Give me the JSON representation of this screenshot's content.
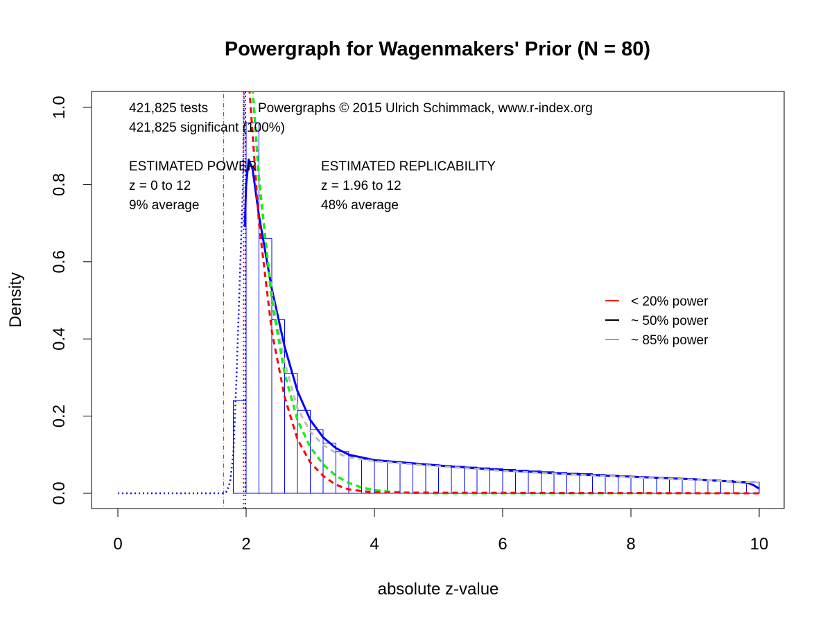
{
  "chart_data": {
    "type": "bar",
    "title": "Powergraph for Wagenmakers' Prior (N = 80)",
    "xlabel": "absolute z-value",
    "ylabel": "Density",
    "xlim": [
      0,
      10
    ],
    "ylim": [
      0,
      1.0
    ],
    "x_ticks": [
      "0",
      "2",
      "4",
      "6",
      "8",
      "10"
    ],
    "y_ticks": [
      "0.0",
      "0.2",
      "0.4",
      "0.6",
      "0.8",
      "1.0"
    ],
    "grid": false,
    "histogram": {
      "bin_width": 0.2,
      "bin_starts": [
        1.8,
        2.0,
        2.2,
        2.4,
        2.6,
        2.8,
        3.0,
        3.2,
        3.4,
        3.6,
        3.8,
        4.0,
        4.2,
        4.4,
        4.6,
        4.8,
        5.0,
        5.2,
        5.4,
        5.6,
        5.8,
        6.0,
        6.2,
        6.4,
        6.6,
        6.8,
        7.0,
        7.2,
        7.4,
        7.6,
        7.8,
        8.0,
        8.2,
        8.4,
        8.6,
        8.8,
        9.0,
        9.2,
        9.4,
        9.6,
        9.8
      ],
      "values": [
        0.24,
        0.96,
        0.66,
        0.45,
        0.31,
        0.215,
        0.165,
        0.13,
        0.108,
        0.095,
        0.088,
        0.084,
        0.081,
        0.078,
        0.076,
        0.074,
        0.072,
        0.07,
        0.068,
        0.066,
        0.064,
        0.062,
        0.06,
        0.058,
        0.056,
        0.054,
        0.052,
        0.051,
        0.049,
        0.047,
        0.045,
        0.044,
        0.042,
        0.041,
        0.039,
        0.038,
        0.036,
        0.035,
        0.033,
        0.031,
        0.029
      ],
      "color": "#0000ff"
    },
    "curves": [
      {
        "id": "density-fit",
        "color": "#0000ff",
        "style": "solid",
        "x": [
          1.98,
          2.0,
          2.04,
          2.1,
          2.2,
          2.4,
          2.6,
          2.8,
          3.0,
          3.2,
          3.4,
          3.6,
          4.0,
          5.0,
          6.0,
          7.0,
          8.0,
          9.0,
          9.8,
          9.9,
          10.0
        ],
        "y": [
          0.69,
          0.8,
          0.865,
          0.84,
          0.72,
          0.53,
          0.38,
          0.265,
          0.19,
          0.145,
          0.117,
          0.1,
          0.086,
          0.072,
          0.06,
          0.05,
          0.043,
          0.036,
          0.028,
          0.022,
          0.012
        ]
      },
      {
        "id": "density-full",
        "color": "#0000ff",
        "style": "dotted",
        "x": [
          0,
          1.65,
          1.7,
          1.75,
          1.8,
          1.85,
          1.9,
          1.95,
          1.97
        ],
        "y": [
          0,
          0,
          0.005,
          0.03,
          0.1,
          0.3,
          0.55,
          0.8,
          1.05
        ]
      },
      {
        "id": "model-fit",
        "color": "#bebebe",
        "style": "dashed",
        "x": [
          2.1,
          2.2,
          2.4,
          2.6,
          2.8,
          3.0,
          3.2,
          3.4,
          3.6,
          4.0,
          5.0,
          6.0,
          7.0,
          8.0,
          9.0,
          10.0
        ],
        "y": [
          1.05,
          0.8,
          0.52,
          0.34,
          0.22,
          0.16,
          0.125,
          0.105,
          0.093,
          0.083,
          0.07,
          0.058,
          0.049,
          0.042,
          0.035,
          0.028
        ]
      },
      {
        "id": "power-50",
        "color": "#000000",
        "style": "dashed",
        "x": [
          2.1,
          2.2,
          2.4,
          2.6,
          2.8,
          3.0,
          3.2,
          3.4,
          3.6,
          3.8,
          4.0,
          4.4,
          5.0,
          10.0
        ],
        "y": [
          1.05,
          0.82,
          0.5,
          0.31,
          0.19,
          0.12,
          0.075,
          0.045,
          0.027,
          0.015,
          0.008,
          0.002,
          0,
          0
        ]
      },
      {
        "id": "power-85",
        "color": "#00ff00",
        "style": "dashed",
        "x": [
          2.1,
          2.2,
          2.4,
          2.6,
          2.8,
          3.0,
          3.2,
          3.4,
          3.6,
          3.8,
          4.0,
          4.4,
          5.0,
          10.0
        ],
        "y": [
          1.05,
          0.82,
          0.5,
          0.31,
          0.19,
          0.12,
          0.075,
          0.045,
          0.027,
          0.015,
          0.008,
          0.002,
          0,
          0
        ]
      },
      {
        "id": "power-20",
        "color": "#ff0000",
        "style": "dashed",
        "x": [
          2.05,
          2.2,
          2.4,
          2.6,
          2.8,
          3.0,
          3.2,
          3.4,
          3.6,
          4.0,
          10.0
        ],
        "y": [
          1.05,
          0.7,
          0.42,
          0.25,
          0.14,
          0.08,
          0.045,
          0.022,
          0.01,
          0.002,
          0
        ]
      }
    ],
    "vlines": [
      {
        "x": 1.65,
        "color": "#ff0000",
        "style": "dotdash"
      },
      {
        "x": 1.96,
        "color": "#ff0000",
        "style": "dotted"
      },
      {
        "x": 1.99,
        "color": "#0000ff",
        "style": "dotted"
      }
    ],
    "annotations": {
      "tests": "421,825 tests",
      "significant": "421,825 significant (100%)",
      "copyright": "Powergraphs © 2015 Ulrich Schimmack, www.r-index.org",
      "power_heading": "ESTIMATED POWER",
      "power_range": "z = 0 to 12",
      "power_value": "9% average",
      "rep_heading": "ESTIMATED REPLICABILITY",
      "rep_range": "z = 1.96 to 12",
      "rep_value": "48% average"
    },
    "legend": {
      "position": "right",
      "entries": [
        {
          "label": "< 20% power",
          "color": "#ff0000"
        },
        {
          "label": "~ 50% power",
          "color": "#000000"
        },
        {
          "label": "~ 85% power",
          "color": "#00ff00"
        }
      ]
    }
  }
}
